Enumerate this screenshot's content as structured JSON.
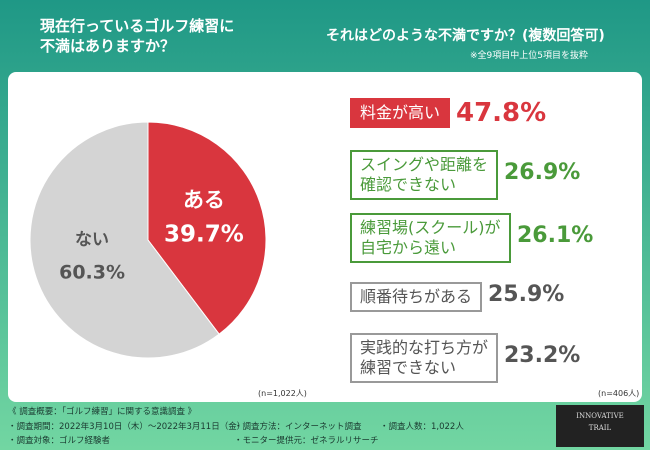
{
  "header": {
    "left_title": "現在行っているゴルフ練習に\n不満はありますか？",
    "right_title": "それはどのような不満ですか？(複数回答可)",
    "right_note": "※全9項目中上位5項目を抜粋"
  },
  "chart_data": [
    {
      "type": "pie",
      "categories": [
        "ある",
        "ない"
      ],
      "values": [
        39.7,
        60.3
      ],
      "value_labels": [
        "39.7%",
        "60.3%"
      ],
      "colors": [
        "#d9363e",
        "#d4d4d4"
      ],
      "note": "(n=1,022人)"
    },
    {
      "type": "ranking",
      "categories": [
        "料金が高い",
        "スイングや距離を\n確認できない",
        "練習場(スクール)が\n自宅から遠い",
        "順番待ちがある",
        "実践的な打ち方が\n練習できない"
      ],
      "values": [
        47.8,
        26.9,
        26.1,
        25.9,
        23.2
      ],
      "value_labels": [
        "47.8%",
        "26.9%",
        "26.1%",
        "25.9%",
        "23.2%"
      ],
      "colors": [
        "#d9363e",
        "#4a9a3a",
        "#4a9a3a",
        "#555555",
        "#555555"
      ],
      "note": "(n=406人)"
    }
  ],
  "footer": {
    "lines": [
      "《 調査概要：「ゴルフ練習」に関する意識調査 》",
      "・調査期間：2022年3月10日（木）～2022年3月11日（金）",
      "・調査方法：インターネット調査",
      "・調査人数：1,022人",
      "・調査対象：ゴルフ経験者",
      "・モニター提供元：ゼネラルリサーチ"
    ],
    "logo": "INNOVATIVE\nTRAIL"
  }
}
